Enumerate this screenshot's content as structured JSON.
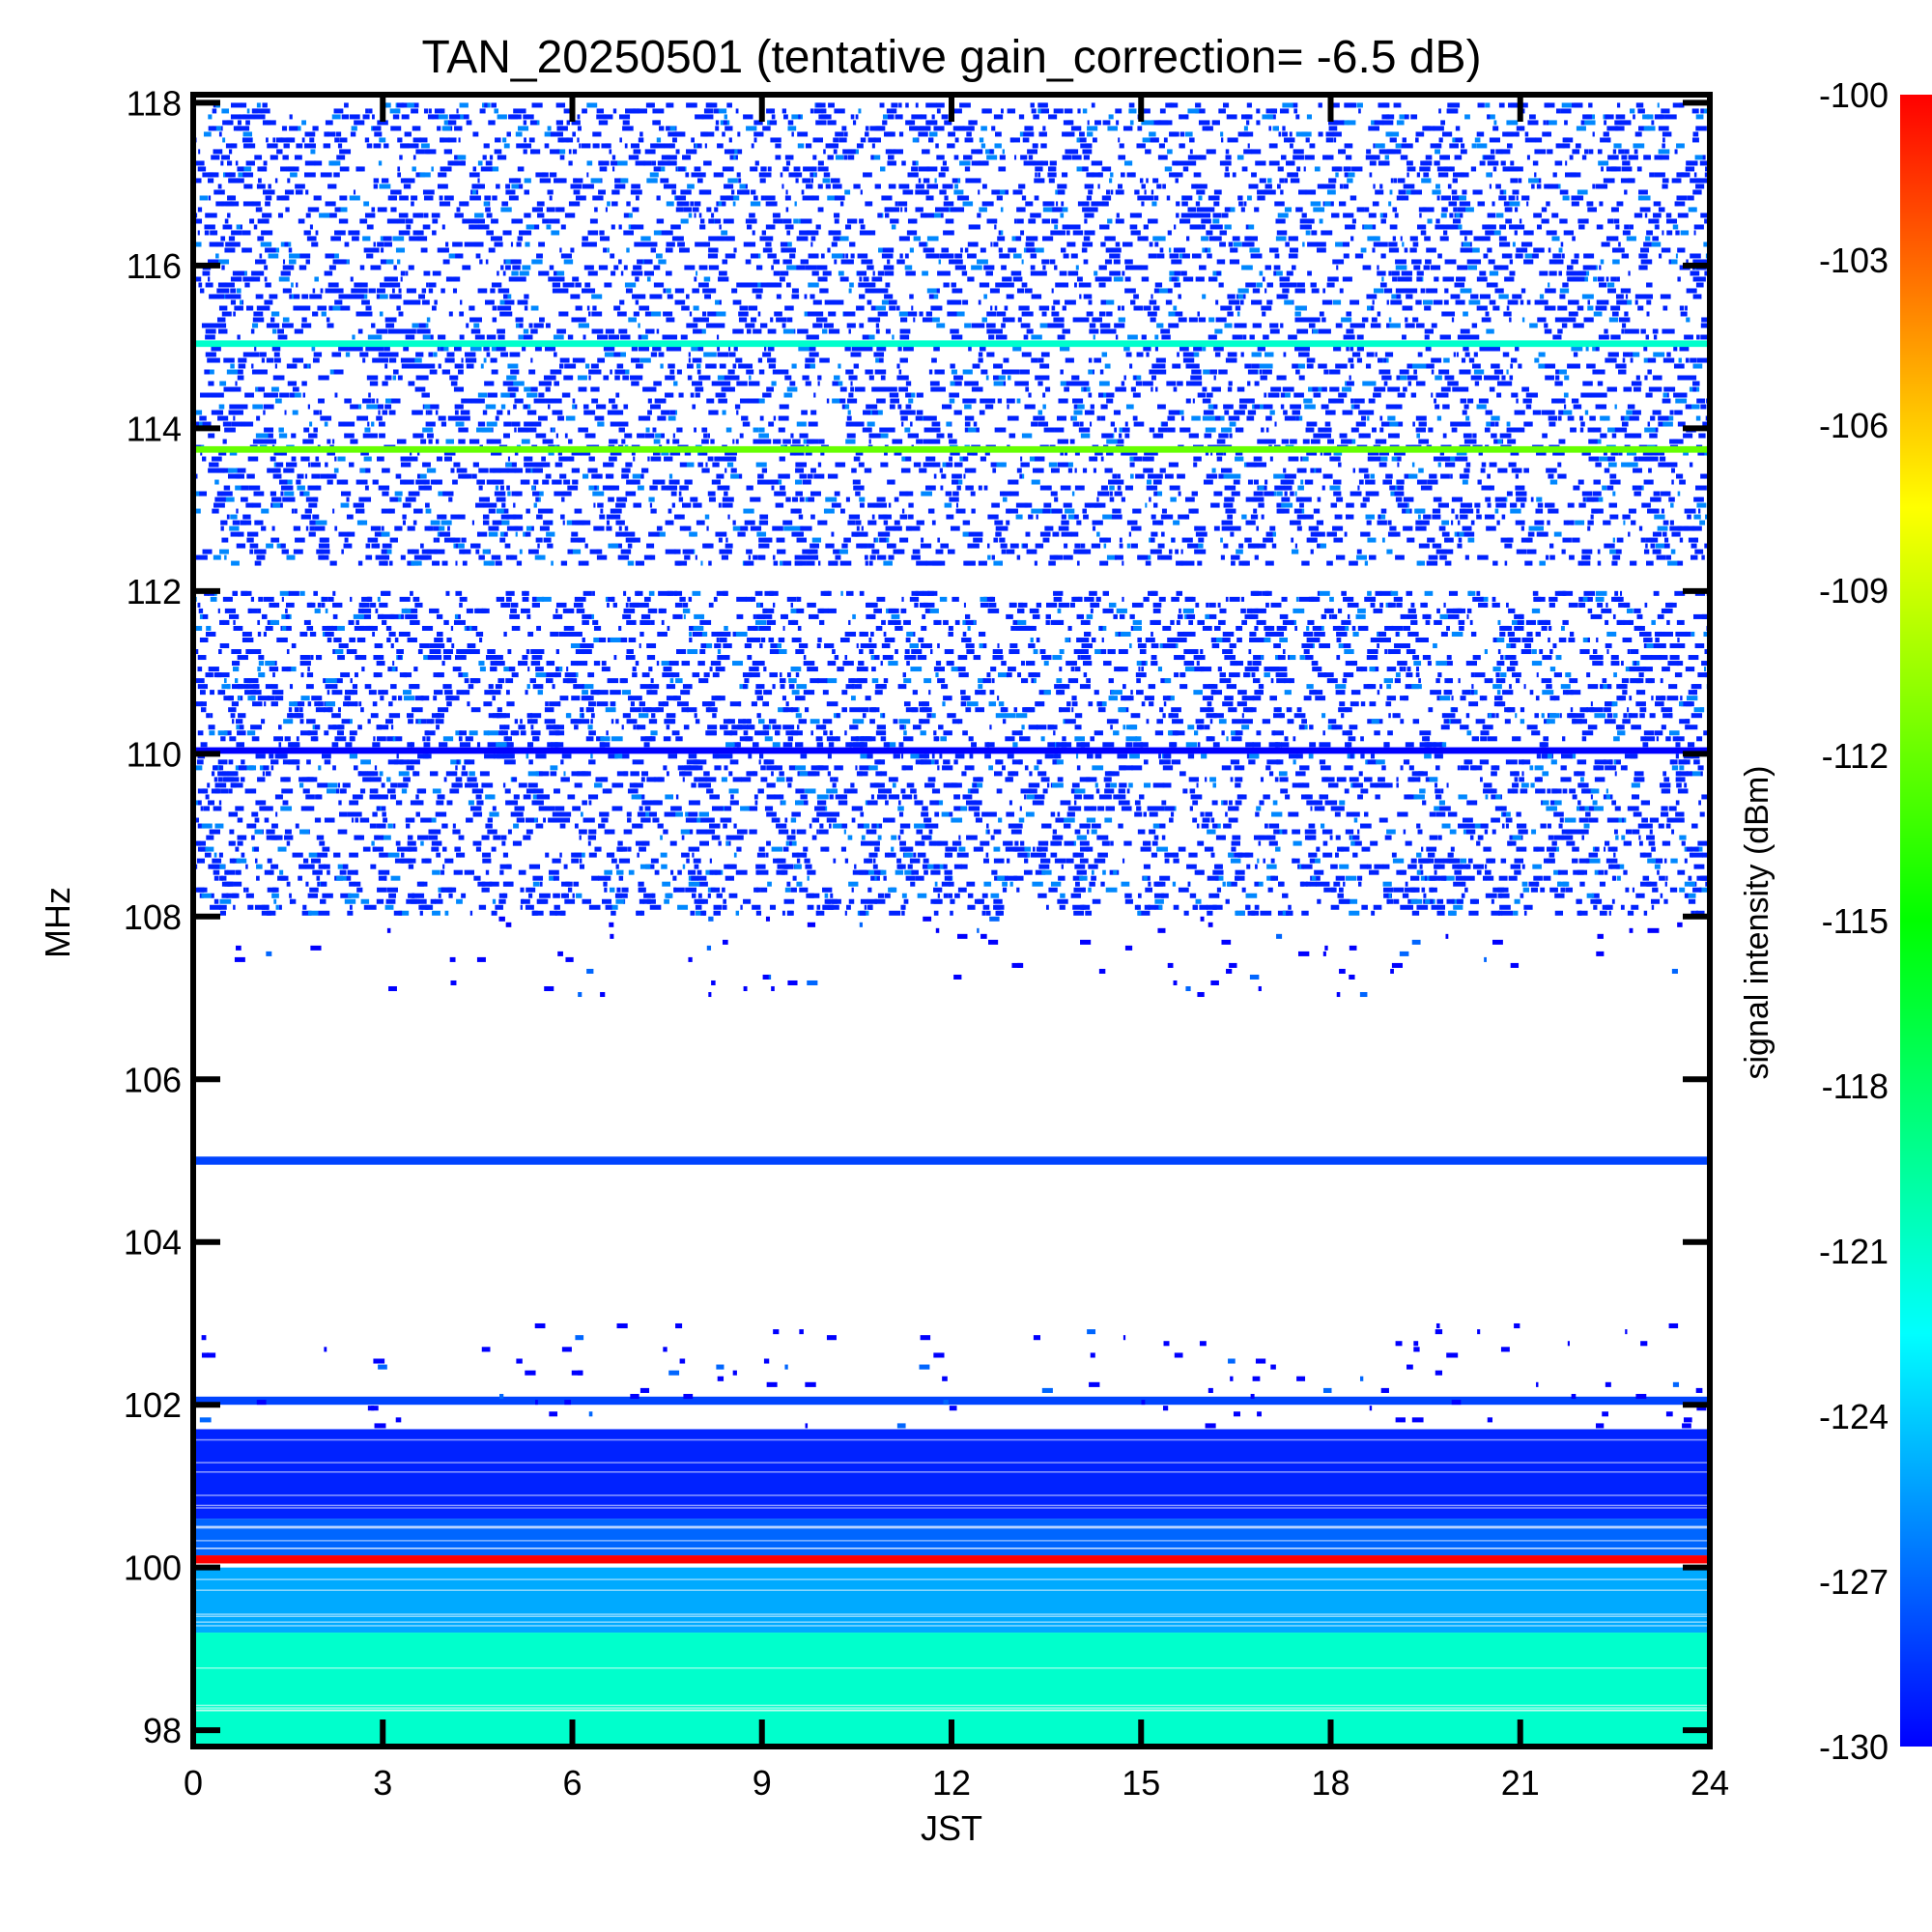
{
  "chart_data": {
    "type": "heatmap",
    "title": "TAN_20250501 (tentative gain_correction= -6.5 dB)",
    "xlabel": "JST",
    "ylabel": "MHz",
    "colorbar_label": "signal intensity (dBm)",
    "xlim": [
      0,
      24
    ],
    "ylim": [
      97.8,
      118.1
    ],
    "zlim": [
      -130,
      -100
    ],
    "x_ticks": [
      0,
      3,
      6,
      9,
      12,
      15,
      18,
      21,
      24
    ],
    "y_ticks": [
      98,
      100,
      102,
      104,
      106,
      108,
      110,
      112,
      114,
      116,
      118
    ],
    "colorbar_ticks": [
      -100,
      -103,
      -106,
      -109,
      -112,
      -115,
      -118,
      -121,
      -124,
      -127,
      -130
    ],
    "colormap": [
      "#0000ff",
      "#0080ff",
      "#00ffff",
      "#00ff80",
      "#00ff00",
      "#80ff00",
      "#ffff00",
      "#ff8000",
      "#ff0000"
    ],
    "bands": [
      {
        "freq_range_mhz": [
          97.8,
          99.2
        ],
        "level_dbm": -121,
        "pattern": "continuous"
      },
      {
        "freq_range_mhz": [
          99.2,
          100.0
        ],
        "level_dbm": -125,
        "pattern": "continuous"
      },
      {
        "freq_range_mhz": [
          100.05,
          100.15
        ],
        "level_dbm": -100,
        "pattern": "carrier"
      },
      {
        "freq_range_mhz": [
          100.15,
          100.6
        ],
        "level_dbm": -127,
        "pattern": "continuous"
      },
      {
        "freq_range_mhz": [
          100.6,
          101.7
        ],
        "level_dbm": -129,
        "pattern": "continuous"
      },
      {
        "freq_range_mhz": [
          102.0,
          102.1
        ],
        "level_dbm": -128,
        "pattern": "carrier"
      },
      {
        "freq_range_mhz": [
          101.7,
          103.0
        ],
        "level_dbm": -130,
        "pattern": "sparse"
      },
      {
        "freq_range_mhz": [
          104.95,
          105.05
        ],
        "level_dbm": -128,
        "pattern": "carrier"
      },
      {
        "freq_range_mhz": [
          108.0,
          112.0
        ],
        "level_dbm": -129,
        "pattern": "dense"
      },
      {
        "freq_range_mhz": [
          107.0,
          108.0
        ],
        "level_dbm": -130,
        "pattern": "sparse"
      },
      {
        "freq_range_mhz": [
          112.3,
          118.0
        ],
        "level_dbm": -129,
        "pattern": "dense"
      },
      {
        "freq_range_mhz": [
          110.0,
          110.08
        ],
        "level_dbm": -130,
        "pattern": "carrier"
      },
      {
        "freq_range_mhz": [
          115.0,
          115.08
        ],
        "level_dbm": -121,
        "pattern": "carrier"
      },
      {
        "freq_range_mhz": [
          113.7,
          113.78
        ],
        "level_dbm": -112,
        "pattern": "carrier"
      }
    ]
  }
}
